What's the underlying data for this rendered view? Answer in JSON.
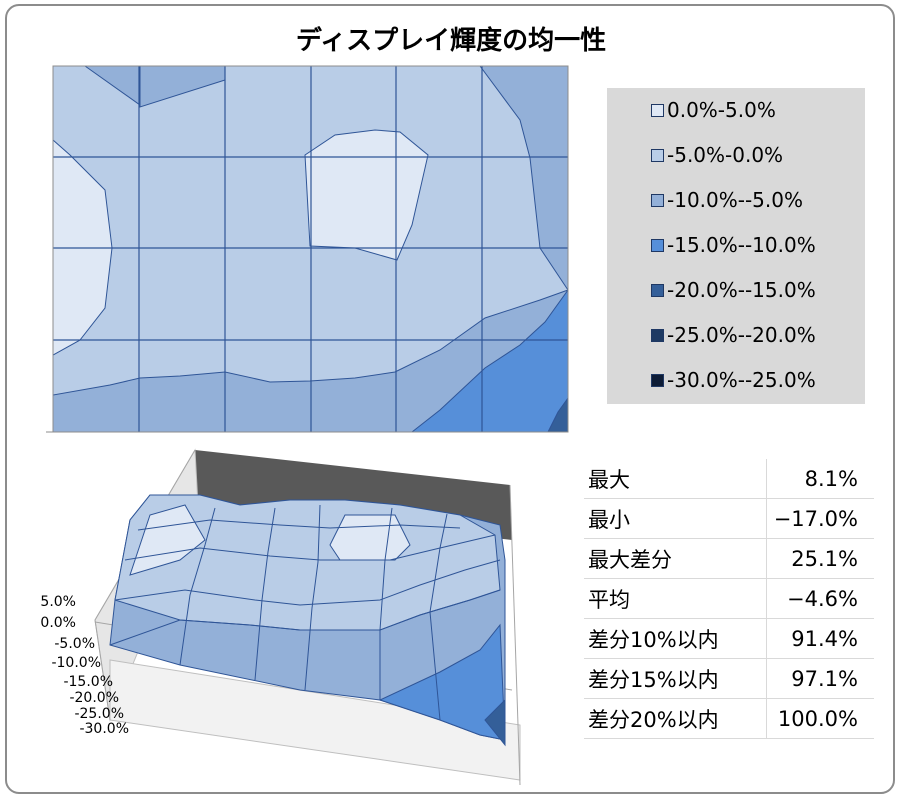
{
  "title": "ディスプレイ輝度の均一性",
  "legend": [
    {
      "label": "0.0%-5.0%",
      "color": "#dfe8f5"
    },
    {
      "label": "-5.0%-0.0%",
      "color": "#b9cde7"
    },
    {
      "label": "-10.0%--5.0%",
      "color": "#93b0d8"
    },
    {
      "label": "-15.0%--10.0%",
      "color": "#568fd9"
    },
    {
      "label": "-20.0%--15.0%",
      "color": "#345f99"
    },
    {
      "label": "-25.0%--20.0%",
      "color": "#1e3a63"
    },
    {
      "label": "-30.0%--25.0%",
      "color": "#0d1c36"
    }
  ],
  "stats": [
    {
      "label": "最大",
      "value": "8.1%"
    },
    {
      "label": "最小",
      "value": "−17.0%"
    },
    {
      "label": "最大差分",
      "value": "25.1%"
    },
    {
      "label": "平均",
      "value": "−4.6%"
    },
    {
      "label": "差分10%以内",
      "value": "91.4%"
    },
    {
      "label": "差分15%以内",
      "value": "97.1%"
    },
    {
      "label": "差分20%以内",
      "value": "100.0%"
    }
  ],
  "chart_data": [
    {
      "type": "heatmap",
      "title": "",
      "grid": true,
      "series": [
        {
          "name": "",
          "values": [
            [
              -5,
              -10,
              -5,
              -5,
              -5,
              -5,
              -10
            ],
            [
              0,
              -5,
              -5,
              3,
              -5,
              -5,
              -10
            ],
            [
              0,
              -5,
              -5,
              -5,
              -5,
              -10,
              -12
            ],
            [
              -10,
              -10,
              -10,
              -10,
              -10,
              -15,
              -17
            ]
          ]
        }
      ]
    },
    {
      "type": "area",
      "z_tick_labels": [
        "5.0%",
        "0.0%",
        "-5.0%",
        "-10.0%",
        "-15.0%",
        "-20.0%",
        "-25.0%",
        "-30.0%"
      ],
      "zlim": [
        -30,
        5
      ]
    }
  ]
}
